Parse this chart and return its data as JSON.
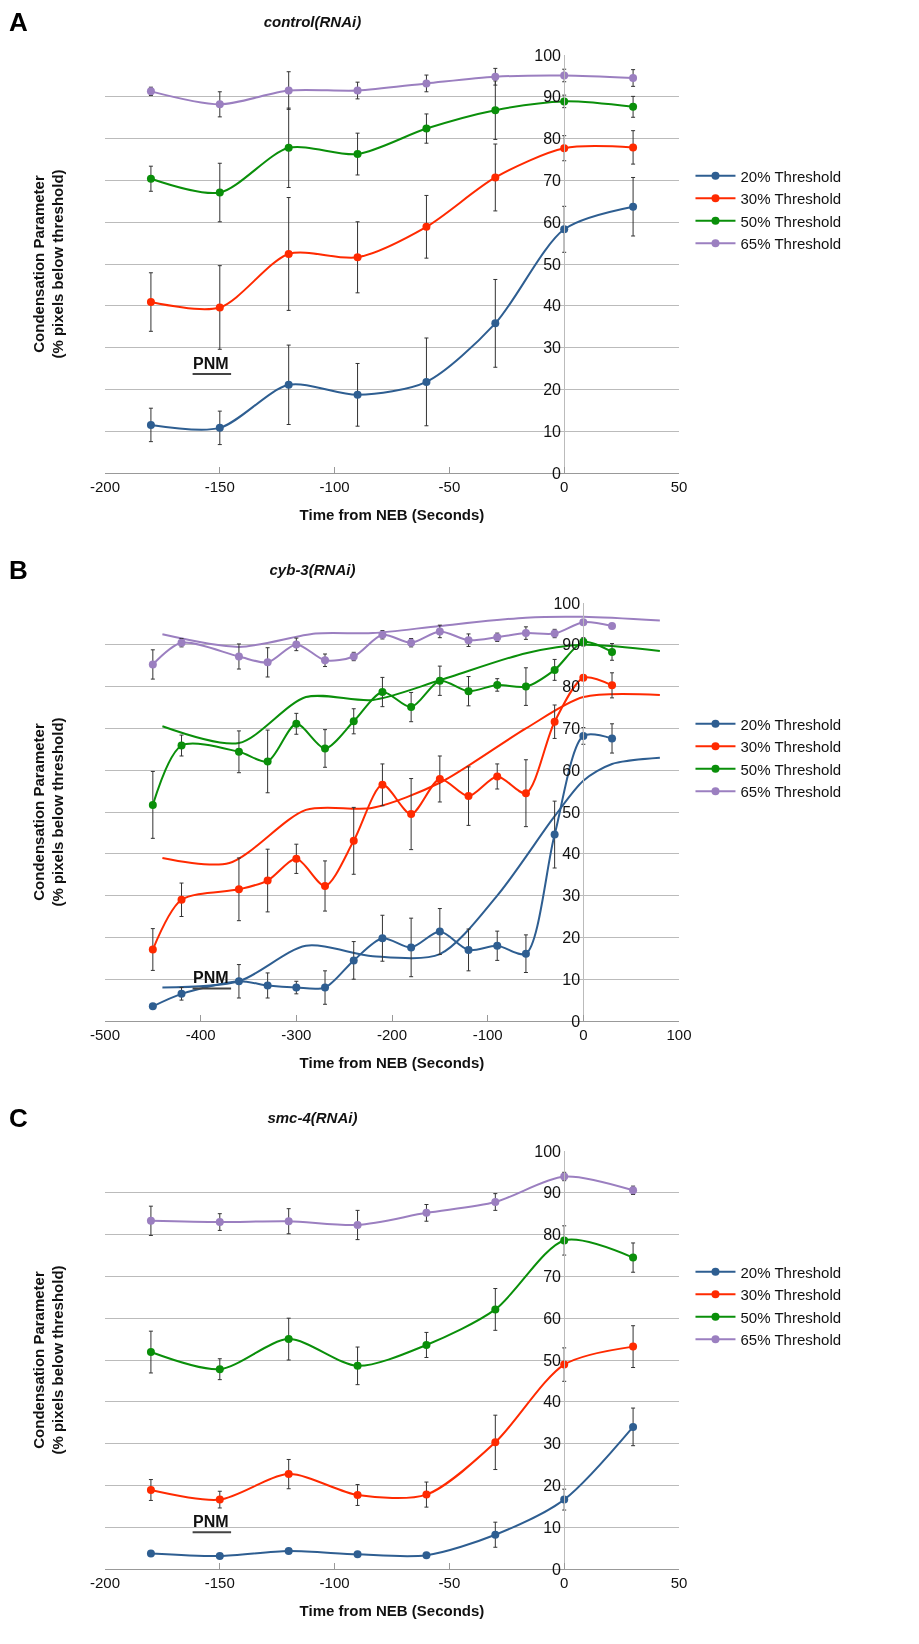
{
  "chart_data": [
    {
      "type": "line",
      "title": "control(RNAi)",
      "xlabel": "Time from NEB (Seconds)",
      "ylabel": "Condensation Parameter\n(% pixels below threshold)",
      "annotations": [
        "A",
        "PNM"
      ],
      "x": [
        -180,
        -150,
        -120,
        -90,
        -60,
        -30,
        0,
        30
      ],
      "series": [
        {
          "name": "20% Threshold",
          "color": "#2e5e91",
          "values": [
            11.5,
            10.8,
            21.1,
            18.7,
            21.8,
            35.8,
            58.3,
            63.7
          ],
          "errors": [
            4,
            4,
            9.5,
            7.5,
            10.5,
            10.5,
            5.5,
            7
          ]
        },
        {
          "name": "30% Threshold",
          "color": "#ff2a00",
          "values": [
            40.9,
            39.6,
            52.4,
            51.6,
            58.9,
            70.7,
            77.7,
            77.9
          ],
          "errors": [
            7,
            10,
            13.5,
            8.5,
            7.5,
            8,
            3,
            4
          ]
        },
        {
          "name": "50% Threshold",
          "color": "#0a8f0a",
          "values": [
            70.4,
            67.1,
            77.8,
            76.3,
            82.4,
            86.8,
            88.9,
            87.6
          ],
          "errors": [
            3,
            7,
            9.5,
            5,
            3.5,
            7,
            1.5,
            2.5
          ]
        },
        {
          "name": "65% Threshold",
          "color": "#9b7fc0",
          "values": [
            91.3,
            88.2,
            91.5,
            91.5,
            93.2,
            94.8,
            95.1,
            94.5
          ],
          "errors": [
            1,
            3,
            4.5,
            2,
            2,
            2,
            1.5,
            2
          ]
        }
      ],
      "xlim": [
        -200,
        50
      ],
      "xticks": [
        -200,
        -150,
        -100,
        -50,
        0,
        50
      ],
      "ylim": [
        0,
        100
      ],
      "yticks": [
        0,
        10,
        20,
        30,
        40,
        50,
        60,
        70,
        80,
        90,
        100
      ],
      "grid": "y",
      "legend": "right",
      "marker": "circle",
      "line_style": "solid"
    },
    {
      "type": "line",
      "title": "cyb-3(RNAi)",
      "xlabel": "Time from NEB (Seconds)",
      "ylabel": "Condensation Parameter\n(% pixels below threshold)",
      "annotations": [
        "B",
        "PNM"
      ],
      "x": [
        -450,
        -420,
        -360,
        -330,
        -300,
        -270,
        -240,
        -210,
        -180,
        -150,
        -120,
        -90,
        -60,
        -30,
        0,
        30
      ],
      "series": [
        {
          "color": "#2e5e91",
          "marker": "none",
          "x": [
            -440,
            -360,
            -290,
            -220,
            -150,
            -90,
            -30,
            0,
            30,
            80
          ],
          "values": [
            8,
            9.5,
            18,
            15.5,
            16,
            30,
            49,
            57.5,
            61.5,
            63
          ]
        },
        {
          "color": "#ff2a00",
          "marker": "none",
          "x": [
            -440,
            -370,
            -290,
            -220,
            -150,
            -60,
            0,
            80
          ],
          "values": [
            39,
            37.8,
            50.5,
            51,
            57,
            70,
            77.5,
            78
          ]
        },
        {
          "color": "#0a8f0a",
          "marker": "none",
          "x": [
            -440,
            -360,
            -290,
            -220,
            -150,
            -60,
            0,
            80
          ],
          "values": [
            70.5,
            66.5,
            77.5,
            76.8,
            81.5,
            88,
            90,
            88.5
          ]
        },
        {
          "color": "#9b7fc0",
          "marker": "none",
          "x": [
            -440,
            -360,
            -280,
            -220,
            -150,
            -60,
            0,
            80
          ],
          "values": [
            92.5,
            89.5,
            92.7,
            92.8,
            94.5,
            96.5,
            96.7,
            95.8
          ]
        },
        {
          "name": "20% Threshold",
          "color": "#2e5e91",
          "values": [
            3.5,
            6.5,
            9.5,
            8.5,
            8,
            8,
            14.5,
            19.8,
            17.6,
            21.4,
            17,
            18,
            16.1,
            44.6,
            68.2,
            67.6
          ],
          "errors": [
            null,
            1.5,
            4,
            3,
            1.5,
            4,
            4.5,
            5.5,
            7,
            5.5,
            5,
            3.5,
            4.5,
            8,
            2,
            3.5
          ]
        },
        {
          "name": "30% Threshold",
          "color": "#ff2a00",
          "values": [
            17.1,
            29,
            31.5,
            33.6,
            38.8,
            32.3,
            43.1,
            56.5,
            49.5,
            57.9,
            53.8,
            58.5,
            54.5,
            71.6,
            82.1,
            80.3
          ],
          "errors": [
            5,
            4,
            7.5,
            7.5,
            3.5,
            6,
            8,
            5,
            8.5,
            5.5,
            7,
            3,
            8,
            4,
            null,
            3
          ]
        },
        {
          "name": "50% Threshold",
          "color": "#0a8f0a",
          "values": [
            51.7,
            65.9,
            64.4,
            62.1,
            71.1,
            65.2,
            71.7,
            78.7,
            75.1,
            81.4,
            78.9,
            80.4,
            80,
            84,
            90.7,
            88.3
          ],
          "errors": [
            8,
            2.5,
            5,
            7.5,
            2.5,
            4.5,
            3,
            3.5,
            3.5,
            3.5,
            3.5,
            1.5,
            4.5,
            2.5,
            1,
            2
          ]
        },
        {
          "name": "65% Threshold",
          "color": "#9b7fc0",
          "values": [
            85.3,
            90.5,
            87.2,
            85.8,
            90.1,
            86.3,
            87.2,
            92.4,
            90.5,
            93.2,
            91.1,
            91.8,
            92.8,
            92.7,
            95.4,
            94.5
          ],
          "errors": [
            3.5,
            1,
            3,
            3.5,
            1.5,
            1.5,
            1,
            1,
            1,
            1.5,
            1.5,
            1,
            1.5,
            1,
            null,
            null
          ]
        }
      ],
      "xlim": [
        -500,
        100
      ],
      "xticks": [
        -500,
        -400,
        -300,
        -200,
        -100,
        0,
        100
      ],
      "ylim": [
        0,
        100
      ],
      "yticks": [
        0,
        10,
        20,
        30,
        40,
        50,
        60,
        70,
        80,
        90,
        100
      ],
      "grid": "y",
      "legend": "right",
      "marker": "circle",
      "line_style": "solid"
    },
    {
      "type": "line",
      "title": "smc-4(RNAi)",
      "xlabel": "Time from NEB (Seconds)",
      "ylabel": "Condensation Parameter\n(% pixels below threshold)",
      "annotations": [
        "C",
        "PNM"
      ],
      "x": [
        -180,
        -150,
        -120,
        -90,
        -60,
        -30,
        0,
        30
      ],
      "series": [
        {
          "name": "20% Threshold",
          "color": "#2e5e91",
          "values": [
            3.7,
            3.1,
            4.3,
            3.5,
            3.3,
            8.2,
            16.6,
            34
          ],
          "errors": [
            null,
            null,
            null,
            null,
            null,
            3,
            2.5,
            4.5
          ]
        },
        {
          "name": "30% Threshold",
          "color": "#ff2a00",
          "values": [
            18.9,
            16.6,
            22.7,
            17.7,
            17.8,
            30.3,
            48.9,
            53.2
          ],
          "errors": [
            2.5,
            2,
            3.5,
            2.5,
            3,
            6.5,
            4,
            5
          ]
        },
        {
          "name": "50% Threshold",
          "color": "#0a8f0a",
          "values": [
            51.9,
            47.8,
            55,
            48.6,
            53.6,
            62.1,
            78.6,
            74.5
          ],
          "errors": [
            5,
            2.5,
            5,
            4.5,
            3,
            5,
            3.5,
            3.5
          ]
        },
        {
          "name": "65% Threshold",
          "color": "#9b7fc0",
          "values": [
            83.3,
            83,
            83.2,
            82.3,
            85.2,
            87.8,
            93.9,
            90.6
          ],
          "errors": [
            3.5,
            2,
            3,
            3.5,
            2,
            2,
            1,
            1
          ]
        }
      ],
      "xlim": [
        -200,
        50
      ],
      "xticks": [
        -200,
        -150,
        -100,
        -50,
        0,
        50
      ],
      "ylim": [
        0,
        100
      ],
      "yticks": [
        0,
        10,
        20,
        30,
        40,
        50,
        60,
        70,
        80,
        90,
        100
      ],
      "grid": "y",
      "legend": "right",
      "marker": "circle",
      "line_style": "solid"
    }
  ]
}
